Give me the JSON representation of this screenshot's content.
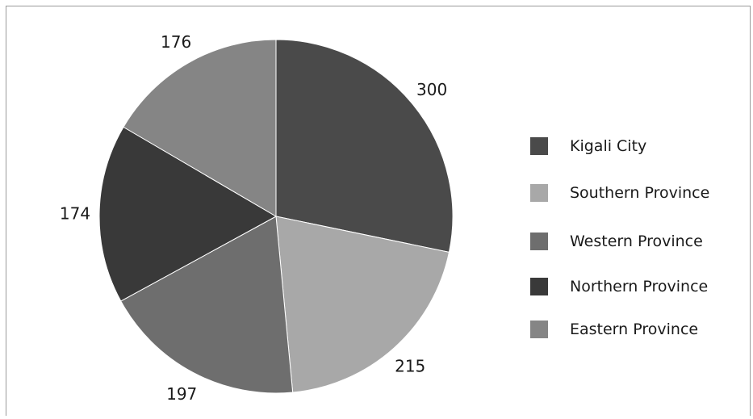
{
  "chart_data": {
    "type": "pie",
    "categories": [
      "Kigali City",
      "Southern Province",
      "Western Province",
      "Northern Province",
      "Eastern Province"
    ],
    "values": [
      300,
      215,
      197,
      174,
      176
    ],
    "colors": [
      "#4a4a4a",
      "#a8a8a8",
      "#6e6e6e",
      "#393939",
      "#858585"
    ],
    "data_labels": [
      "300",
      "215",
      "197",
      "174",
      "176"
    ],
    "start_angle": "12 o'clock",
    "direction": "clockwise",
    "legend_position": "right"
  }
}
